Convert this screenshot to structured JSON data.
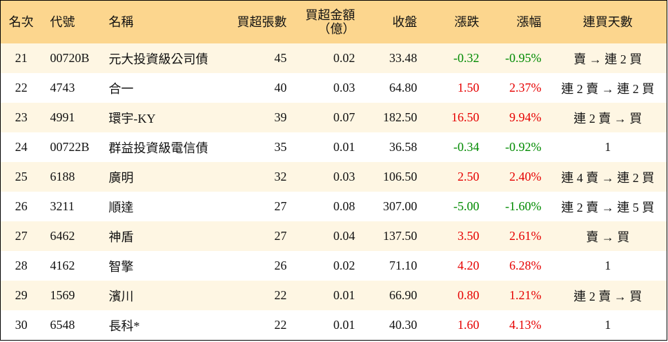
{
  "table": {
    "headers": [
      "名次",
      "代號",
      "名稱",
      "買超張數",
      "買超金額\n（億）",
      "收盤",
      "漲跌",
      "漲幅",
      "連買天數"
    ],
    "rows": [
      [
        "21",
        "00720B",
        "元大投資級公司債",
        "45",
        "0.02",
        "33.48",
        "-0.32",
        "-0.95%",
        "賣 → 連 2 買"
      ],
      [
        "22",
        "4743",
        "合一",
        "40",
        "0.03",
        "64.80",
        "1.50",
        "2.37%",
        "連 2 賣 → 連 2 買"
      ],
      [
        "23",
        "4991",
        "環宇-KY",
        "39",
        "0.07",
        "182.50",
        "16.50",
        "9.94%",
        "連 2 賣 → 買"
      ],
      [
        "24",
        "00722B",
        "群益投資級電信債",
        "35",
        "0.01",
        "36.58",
        "-0.34",
        "-0.92%",
        "1"
      ],
      [
        "25",
        "6188",
        "廣明",
        "32",
        "0.03",
        "106.50",
        "2.50",
        "2.40%",
        "連 4 賣 → 連 2 買"
      ],
      [
        "26",
        "3211",
        "順達",
        "27",
        "0.08",
        "307.00",
        "-5.00",
        "-1.60%",
        "連 2 賣 → 連 5 買"
      ],
      [
        "27",
        "6462",
        "神盾",
        "27",
        "0.04",
        "137.50",
        "3.50",
        "2.61%",
        "賣 → 買"
      ],
      [
        "28",
        "4162",
        "智擎",
        "26",
        "0.02",
        "71.10",
        "4.20",
        "6.28%",
        "1"
      ],
      [
        "29",
        "1569",
        "濱川",
        "22",
        "0.01",
        "66.90",
        "0.80",
        "1.21%",
        "連 2 賣 → 買"
      ],
      [
        "30",
        "6548",
        "長科*",
        "22",
        "0.01",
        "40.30",
        "1.60",
        "4.13%",
        "1"
      ]
    ]
  }
}
